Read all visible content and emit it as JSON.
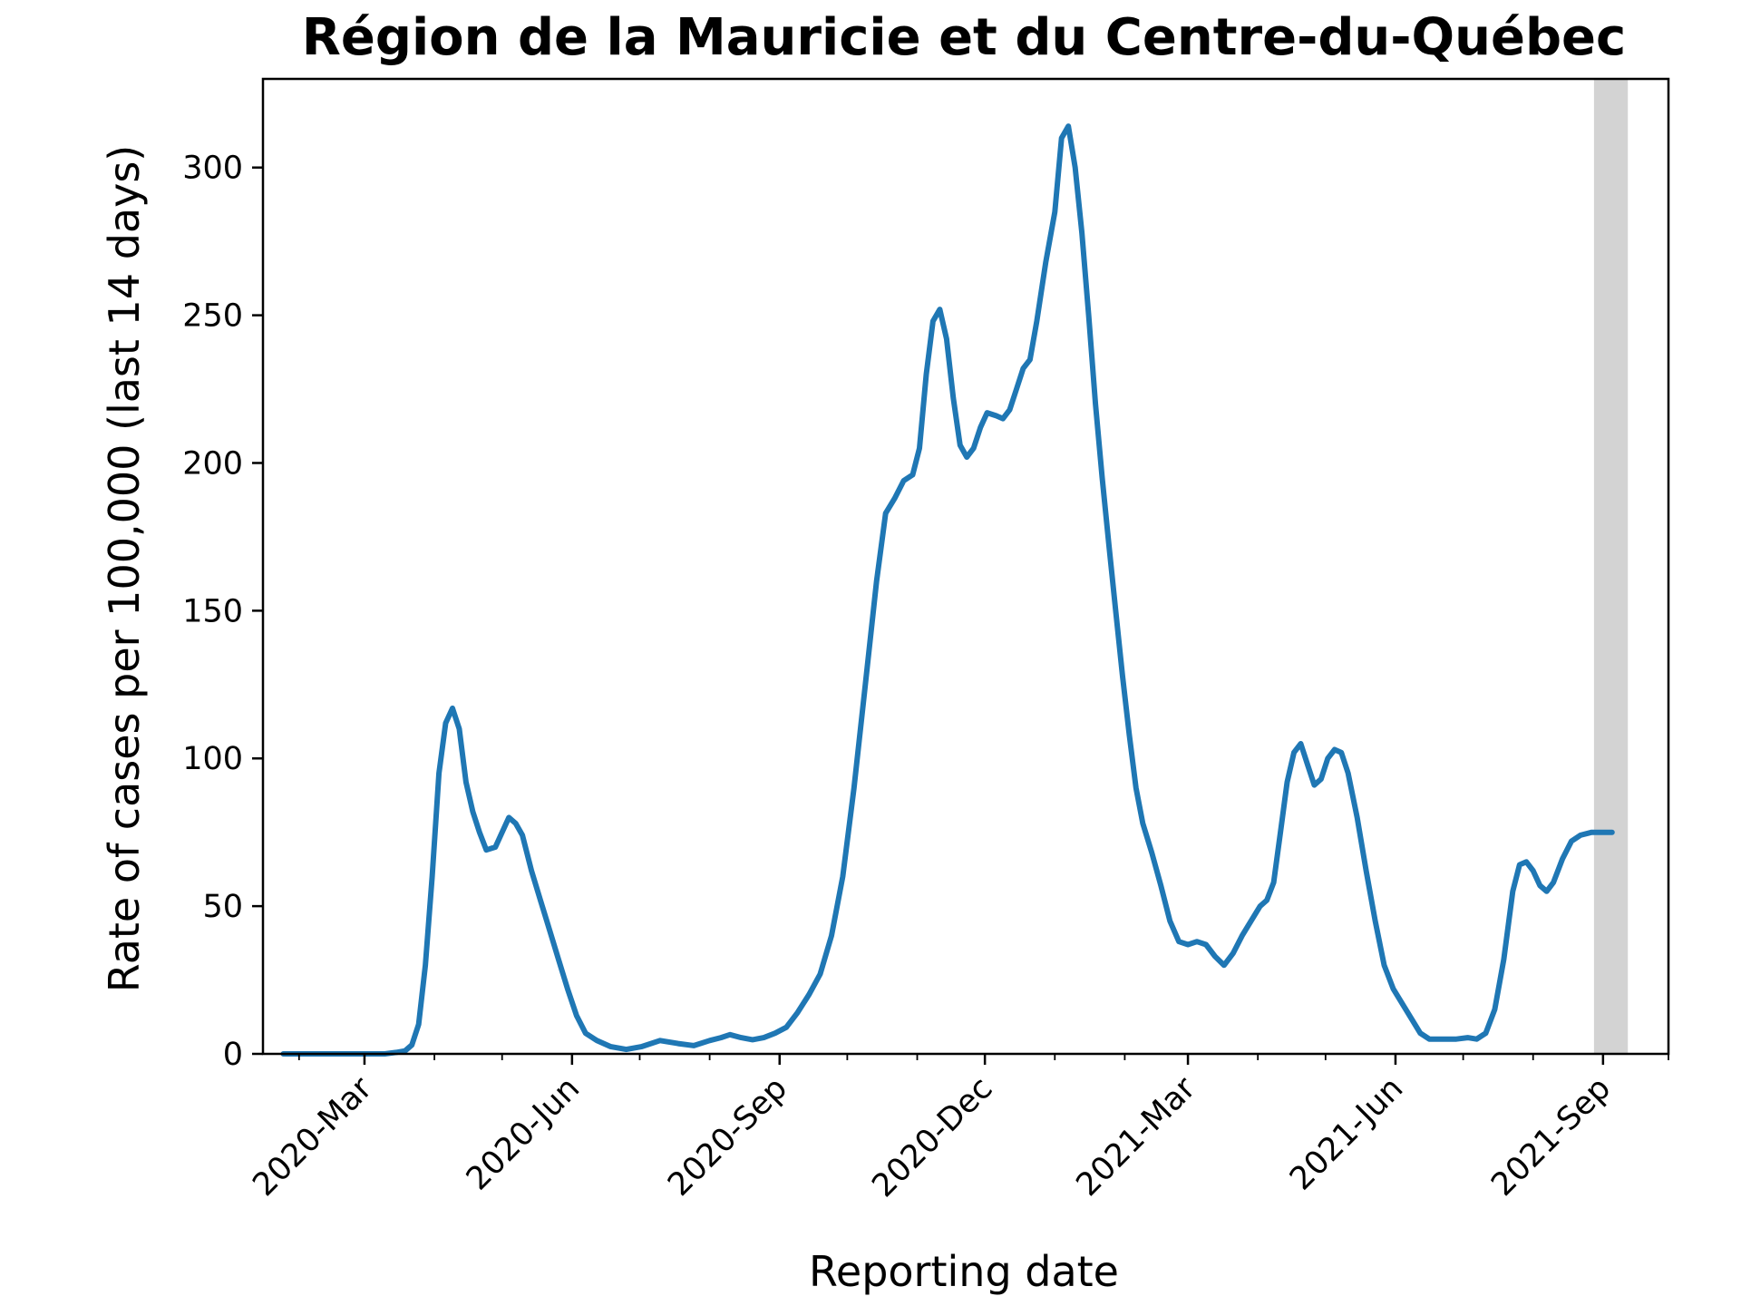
{
  "chart_data": {
    "type": "line",
    "title": "Région de la Mauricie et du Centre-du-Québec",
    "xlabel": "Reporting date",
    "ylabel": "Rate of cases per 100,000 (last 14 days)",
    "x_type": "date",
    "xlim": [
      "2020-01-16",
      "2021-09-30"
    ],
    "ylim": [
      0,
      330
    ],
    "y_ticks": [
      0,
      50,
      100,
      150,
      200,
      250,
      300
    ],
    "x_ticks": [
      {
        "date": "2020-03-01",
        "label": "2020-Mar"
      },
      {
        "date": "2020-06-01",
        "label": "2020-Jun"
      },
      {
        "date": "2020-09-01",
        "label": "2020-Sep"
      },
      {
        "date": "2020-12-01",
        "label": "2020-Dec"
      },
      {
        "date": "2021-03-01",
        "label": "2021-Mar"
      },
      {
        "date": "2021-06-01",
        "label": "2021-Jun"
      },
      {
        "date": "2021-09-01",
        "label": "2021-Sep"
      }
    ],
    "x_minor_ticks": [
      "2020-02-01",
      "2020-04-01",
      "2020-05-01",
      "2020-07-01",
      "2020-08-01",
      "2020-10-01",
      "2020-11-01",
      "2021-01-01",
      "2021-02-01",
      "2021-04-01",
      "2021-05-01",
      "2021-07-01",
      "2021-08-01",
      "2021-09-30"
    ],
    "shaded_region": {
      "start": "2021-08-28",
      "end": "2021-09-12",
      "color": "#d3d3d3"
    },
    "grid": false,
    "series": [
      {
        "color": "#1f77b4",
        "points": [
          [
            "2020-01-25",
            0
          ],
          [
            "2020-02-15",
            0
          ],
          [
            "2020-03-01",
            0
          ],
          [
            "2020-03-10",
            0
          ],
          [
            "2020-03-15",
            0.5
          ],
          [
            "2020-03-19",
            1
          ],
          [
            "2020-03-22",
            3
          ],
          [
            "2020-03-25",
            10
          ],
          [
            "2020-03-28",
            30
          ],
          [
            "2020-03-31",
            60
          ],
          [
            "2020-04-03",
            95
          ],
          [
            "2020-04-06",
            112
          ],
          [
            "2020-04-09",
            117
          ],
          [
            "2020-04-12",
            110
          ],
          [
            "2020-04-15",
            92
          ],
          [
            "2020-04-18",
            82
          ],
          [
            "2020-04-21",
            75
          ],
          [
            "2020-04-24",
            69
          ],
          [
            "2020-04-28",
            70
          ],
          [
            "2020-05-01",
            75
          ],
          [
            "2020-05-04",
            80
          ],
          [
            "2020-05-07",
            78
          ],
          [
            "2020-05-10",
            74
          ],
          [
            "2020-05-14",
            62
          ],
          [
            "2020-05-18",
            52
          ],
          [
            "2020-05-22",
            42
          ],
          [
            "2020-05-26",
            32
          ],
          [
            "2020-05-30",
            22
          ],
          [
            "2020-06-03",
            13
          ],
          [
            "2020-06-07",
            7
          ],
          [
            "2020-06-12",
            4.5
          ],
          [
            "2020-06-18",
            2.5
          ],
          [
            "2020-06-25",
            1.5
          ],
          [
            "2020-07-02",
            2.5
          ],
          [
            "2020-07-10",
            4.5
          ],
          [
            "2020-07-18",
            3.5
          ],
          [
            "2020-07-25",
            2.8
          ],
          [
            "2020-08-01",
            4.5
          ],
          [
            "2020-08-06",
            5.5
          ],
          [
            "2020-08-10",
            6.5
          ],
          [
            "2020-08-15",
            5.5
          ],
          [
            "2020-08-20",
            4.8
          ],
          [
            "2020-08-25",
            5.5
          ],
          [
            "2020-08-30",
            7
          ],
          [
            "2020-09-04",
            9
          ],
          [
            "2020-09-09",
            14
          ],
          [
            "2020-09-14",
            20
          ],
          [
            "2020-09-19",
            27
          ],
          [
            "2020-09-24",
            40
          ],
          [
            "2020-09-29",
            60
          ],
          [
            "2020-10-04",
            90
          ],
          [
            "2020-10-09",
            125
          ],
          [
            "2020-10-14",
            160
          ],
          [
            "2020-10-18",
            183
          ],
          [
            "2020-10-22",
            188
          ],
          [
            "2020-10-26",
            194
          ],
          [
            "2020-10-30",
            196
          ],
          [
            "2020-11-02",
            205
          ],
          [
            "2020-11-05",
            230
          ],
          [
            "2020-11-08",
            248
          ],
          [
            "2020-11-11",
            252
          ],
          [
            "2020-11-14",
            242
          ],
          [
            "2020-11-17",
            222
          ],
          [
            "2020-11-20",
            206
          ],
          [
            "2020-11-23",
            202
          ],
          [
            "2020-11-26",
            205
          ],
          [
            "2020-11-29",
            212
          ],
          [
            "2020-12-02",
            217
          ],
          [
            "2020-12-06",
            216
          ],
          [
            "2020-12-09",
            215
          ],
          [
            "2020-12-12",
            218
          ],
          [
            "2020-12-15",
            225
          ],
          [
            "2020-12-18",
            232
          ],
          [
            "2020-12-21",
            235
          ],
          [
            "2020-12-24",
            248
          ],
          [
            "2020-12-28",
            268
          ],
          [
            "2021-01-01",
            285
          ],
          [
            "2021-01-04",
            310
          ],
          [
            "2021-01-07",
            314
          ],
          [
            "2021-01-10",
            300
          ],
          [
            "2021-01-13",
            278
          ],
          [
            "2021-01-16",
            250
          ],
          [
            "2021-01-19",
            220
          ],
          [
            "2021-01-22",
            195
          ],
          [
            "2021-01-25",
            172
          ],
          [
            "2021-01-28",
            150
          ],
          [
            "2021-01-31",
            128
          ],
          [
            "2021-02-03",
            108
          ],
          [
            "2021-02-06",
            90
          ],
          [
            "2021-02-09",
            78
          ],
          [
            "2021-02-13",
            68
          ],
          [
            "2021-02-17",
            57
          ],
          [
            "2021-02-21",
            45
          ],
          [
            "2021-02-25",
            38
          ],
          [
            "2021-03-01",
            37
          ],
          [
            "2021-03-05",
            38
          ],
          [
            "2021-03-09",
            37
          ],
          [
            "2021-03-13",
            33
          ],
          [
            "2021-03-17",
            30
          ],
          [
            "2021-03-21",
            34
          ],
          [
            "2021-03-25",
            40
          ],
          [
            "2021-03-29",
            45
          ],
          [
            "2021-04-02",
            50
          ],
          [
            "2021-04-05",
            52
          ],
          [
            "2021-04-08",
            58
          ],
          [
            "2021-04-11",
            75
          ],
          [
            "2021-04-14",
            92
          ],
          [
            "2021-04-17",
            102
          ],
          [
            "2021-04-20",
            105
          ],
          [
            "2021-04-23",
            98
          ],
          [
            "2021-04-26",
            91
          ],
          [
            "2021-04-29",
            93
          ],
          [
            "2021-05-02",
            100
          ],
          [
            "2021-05-05",
            103
          ],
          [
            "2021-05-08",
            102
          ],
          [
            "2021-05-11",
            95
          ],
          [
            "2021-05-15",
            80
          ],
          [
            "2021-05-19",
            62
          ],
          [
            "2021-05-23",
            45
          ],
          [
            "2021-05-27",
            30
          ],
          [
            "2021-05-31",
            22
          ],
          [
            "2021-06-04",
            17
          ],
          [
            "2021-06-08",
            12
          ],
          [
            "2021-06-12",
            7
          ],
          [
            "2021-06-16",
            5
          ],
          [
            "2021-06-22",
            5
          ],
          [
            "2021-06-28",
            5
          ],
          [
            "2021-07-03",
            5.5
          ],
          [
            "2021-07-07",
            5
          ],
          [
            "2021-07-11",
            7
          ],
          [
            "2021-07-15",
            15
          ],
          [
            "2021-07-19",
            32
          ],
          [
            "2021-07-23",
            55
          ],
          [
            "2021-07-26",
            64
          ],
          [
            "2021-07-29",
            65
          ],
          [
            "2021-08-01",
            62
          ],
          [
            "2021-08-04",
            57
          ],
          [
            "2021-08-07",
            55
          ],
          [
            "2021-08-10",
            58
          ],
          [
            "2021-08-14",
            66
          ],
          [
            "2021-08-18",
            72
          ],
          [
            "2021-08-22",
            74
          ],
          [
            "2021-08-27",
            75
          ],
          [
            "2021-09-05",
            75
          ]
        ]
      }
    ]
  }
}
